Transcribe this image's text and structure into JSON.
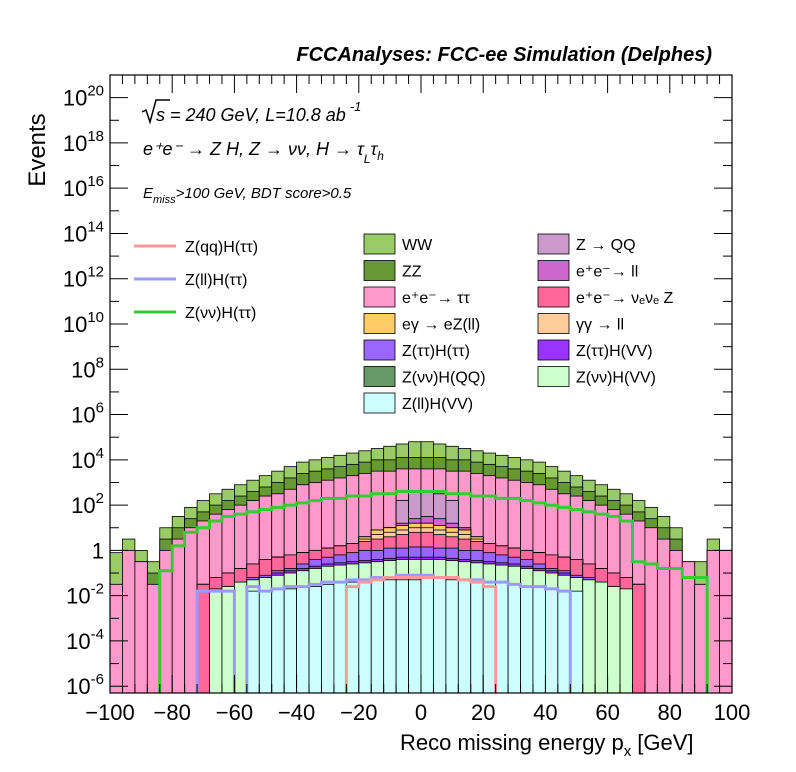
{
  "chart_data": {
    "type": "histogram-stacked",
    "title": "FCCAnalyses: FCC-ee Simulation (Delphes)",
    "xlabel": "Reco missing energy p",
    "xlabel_sub": "x",
    "xlabel_unit": "[GeV]",
    "ylabel": "Events",
    "xlim": [
      -100,
      100
    ],
    "ylim_log10": [
      -6.3,
      21
    ],
    "yscale": "log",
    "x_ticks": [
      "−100",
      "−80",
      "−60",
      "−40",
      "−20",
      "0",
      "20",
      "40",
      "60",
      "80",
      "100"
    ],
    "y_ticks": [
      {
        "base": "10",
        "exp": "-6",
        "v": -6
      },
      {
        "base": "10",
        "exp": "-4",
        "v": -4
      },
      {
        "base": "10",
        "exp": "-2",
        "v": -2
      },
      {
        "base": "1",
        "exp": "",
        "v": 0
      },
      {
        "base": "10",
        "exp": "2",
        "v": 2
      },
      {
        "base": "10",
        "exp": "4",
        "v": 4
      },
      {
        "base": "10",
        "exp": "6",
        "v": 6
      },
      {
        "base": "10",
        "exp": "8",
        "v": 8
      },
      {
        "base": "10",
        "exp": "10",
        "v": 10
      },
      {
        "base": "10",
        "exp": "12",
        "v": 12
      },
      {
        "base": "10",
        "exp": "14",
        "v": 14
      },
      {
        "base": "10",
        "exp": "16",
        "v": 16
      },
      {
        "base": "10",
        "exp": "18",
        "v": 18
      },
      {
        "base": "10",
        "exp": "20",
        "v": 20
      }
    ],
    "annotations": {
      "energy": "s = 240 GeV, L=10.8 ab",
      "energy_exp": "-1",
      "process": "e⁺e⁻ → Z H, Z → νν, H → τ",
      "process_sub1": "L",
      "process_tau2": "τ",
      "process_sub2": "h",
      "cut_prefix": "E",
      "cut_sub": "miss",
      "cut_text": ">100 GeV, BDT score>0.5"
    },
    "legend_lines": [
      {
        "name": "Z(qq)H(ττ)",
        "color": "#ff9999"
      },
      {
        "name": "Z(ll)H(ττ)",
        "color": "#9999ff"
      },
      {
        "name": "Z(νν)H(ττ)",
        "color": "#33cc33"
      }
    ],
    "legend_fills": [
      {
        "name": "WW",
        "color": "#99cc66"
      },
      {
        "name": "Z → QQ",
        "color": "#cc99cc"
      },
      {
        "name": "ZZ",
        "color": "#669933"
      },
      {
        "name": "e⁺e⁻→ ll",
        "color": "#cc66cc"
      },
      {
        "name": "e⁺e⁻→ ττ",
        "color": "#ff99cc"
      },
      {
        "name": "e⁺e⁻→ νₑνₑ Z",
        "color": "#ff6699"
      },
      {
        "name": "eγ → eZ(ll)",
        "color": "#ffcc66"
      },
      {
        "name": "γγ → ll",
        "color": "#ffcc99"
      },
      {
        "name": "Z(ττ)H(ττ)",
        "color": "#9966ff"
      },
      {
        "name": "Z(ττ)H(VV)",
        "color": "#9933ff"
      },
      {
        "name": "Z(νν)H(QQ)",
        "color": "#669966"
      },
      {
        "name": "Z(νν)H(VV)",
        "color": "#ccffcc"
      },
      {
        "name": "Z(ll)H(VV)",
        "color": "#ccffff"
      }
    ],
    "bin_edges_start": -100,
    "bin_width": 4,
    "stack_order": [
      "Z(ll)H(VV)",
      "Z(νν)H(VV)",
      "Z(ττ)H(VV)",
      "Z(ττ)H(ττ)",
      "e⁺e⁻→ νₑνₑ Z",
      "γγ → ll",
      "eγ → eZ(ll)",
      "Z(νν)H(QQ)",
      "e⁺e⁻→ ll",
      "Z → QQ",
      "e⁺e⁻→ ττ",
      "ZZ",
      "WW"
    ],
    "stack_totals_log10": [
      {
        "name": "Z(ll)H(VV)",
        "values": [
          null,
          null,
          null,
          null,
          null,
          null,
          null,
          null,
          null,
          null,
          null,
          -1.8,
          -1.8,
          -1.7,
          -1.7,
          -1.6,
          -1.6,
          -1.5,
          -1.4,
          -1.4,
          -1.4,
          -1.3,
          -1.3,
          -1.3,
          -1.3,
          -1.2,
          -1.2,
          -1.3,
          -1.3,
          -1.3,
          -1.4,
          -1.4,
          -1.5,
          -1.6,
          -1.6,
          -1.7,
          -1.8,
          -1.8,
          null,
          null,
          null,
          null,
          null,
          null,
          null,
          null,
          null,
          null,
          null,
          null
        ]
      },
      {
        "name": "Z(νν)H(VV)",
        "values": [
          null,
          null,
          null,
          null,
          null,
          null,
          null,
          null,
          -1.7,
          -1.6,
          -1.4,
          -1.3,
          -1.2,
          -1.1,
          -1.0,
          -0.9,
          -0.8,
          -0.7,
          -0.65,
          -0.6,
          -0.55,
          -0.5,
          -0.45,
          -0.4,
          -0.4,
          -0.4,
          -0.4,
          -0.45,
          -0.5,
          -0.55,
          -0.6,
          -0.65,
          -0.7,
          -0.8,
          -0.9,
          -1.0,
          -1.1,
          -1.2,
          -1.3,
          -1.4,
          -1.6,
          -1.7,
          null,
          null,
          null,
          null,
          null,
          null,
          null,
          null
        ]
      },
      {
        "name": "Z(ττ)H(VV)",
        "values": [
          null,
          null,
          null,
          null,
          null,
          null,
          null,
          null,
          null,
          null,
          null,
          -1.3,
          -1.2,
          -1.0,
          -0.9,
          -0.8,
          -0.7,
          -0.6,
          -0.55,
          -0.5,
          -0.45,
          -0.4,
          -0.35,
          -0.3,
          -0.3,
          -0.3,
          -0.3,
          -0.35,
          -0.4,
          -0.45,
          -0.5,
          -0.55,
          -0.6,
          -0.7,
          -0.8,
          -0.9,
          -1.0,
          -1.2,
          -1.3,
          null,
          null,
          null,
          null,
          null,
          null,
          null,
          null,
          null,
          null,
          null
        ]
      },
      {
        "name": "Z(ττ)H(ττ)",
        "values": [
          null,
          null,
          null,
          null,
          null,
          null,
          null,
          null,
          null,
          null,
          null,
          -1.2,
          -1.1,
          -0.9,
          -0.8,
          -0.6,
          -0.4,
          -0.3,
          -0.2,
          -0.1,
          0.0,
          0.0,
          0.1,
          0.1,
          0.15,
          0.15,
          0.1,
          0.1,
          0.0,
          0.0,
          -0.1,
          -0.2,
          -0.3,
          -0.4,
          -0.6,
          -0.8,
          -0.9,
          -1.1,
          -1.2,
          null,
          null,
          null,
          null,
          null,
          null,
          null,
          null,
          null,
          null,
          null
        ]
      },
      {
        "name": "e⁺e⁻→ νₑνₑ Z",
        "values": [
          null,
          null,
          null,
          null,
          null,
          null,
          null,
          -1.5,
          -1.2,
          -1.0,
          -0.8,
          -0.6,
          -0.4,
          -0.3,
          -0.2,
          -0.1,
          0.0,
          0.1,
          0.2,
          0.3,
          0.4,
          0.5,
          0.6,
          0.7,
          0.8,
          0.8,
          0.7,
          0.6,
          0.5,
          0.4,
          0.3,
          0.2,
          0.1,
          0.0,
          -0.1,
          -0.2,
          -0.3,
          -0.4,
          -0.6,
          -0.8,
          -1.0,
          -1.2,
          -1.5,
          null,
          null,
          null,
          null,
          null,
          null,
          null
        ]
      },
      {
        "name": "γγ → ll",
        "values": [
          null,
          null,
          null,
          null,
          null,
          null,
          null,
          -1.5,
          -1.2,
          -1.0,
          -0.8,
          -0.6,
          -0.4,
          -0.3,
          -0.2,
          -0.1,
          0.0,
          0.1,
          0.2,
          0.3,
          0.5,
          0.7,
          0.8,
          0.9,
          1.0,
          1.0,
          0.9,
          0.8,
          0.7,
          0.5,
          0.3,
          0.2,
          0.1,
          0.0,
          -0.1,
          -0.2,
          -0.3,
          -0.4,
          -0.6,
          -0.8,
          -1.0,
          -1.2,
          -1.5,
          null,
          null,
          null,
          null,
          null,
          null,
          null
        ]
      },
      {
        "name": "eγ → eZ(ll)",
        "values": [
          null,
          null,
          null,
          null,
          null,
          null,
          null,
          -1.5,
          -1.2,
          -1.0,
          -0.8,
          -0.6,
          -0.4,
          -0.3,
          -0.2,
          -0.1,
          0.0,
          0.1,
          0.2,
          0.3,
          0.6,
          0.9,
          1.0,
          1.1,
          1.2,
          1.2,
          1.1,
          1.0,
          0.9,
          0.6,
          0.3,
          0.2,
          0.1,
          0.0,
          -0.1,
          -0.2,
          -0.3,
          -0.4,
          -0.6,
          -0.8,
          -1.0,
          -1.2,
          -1.5,
          null,
          null,
          null,
          null,
          null,
          null,
          null
        ]
      },
      {
        "name": "Z(νν)H(QQ)",
        "values": [
          null,
          null,
          null,
          null,
          null,
          null,
          null,
          -1.5,
          -1.2,
          -1.0,
          -0.8,
          -0.6,
          -0.4,
          -0.3,
          -0.2,
          -0.1,
          0.0,
          0.1,
          0.2,
          0.3,
          0.6,
          0.9,
          1.0,
          1.1,
          1.2,
          1.2,
          1.1,
          1.0,
          0.9,
          0.6,
          0.3,
          0.2,
          0.1,
          0.0,
          -0.1,
          -0.2,
          -0.3,
          -0.4,
          -0.6,
          -0.8,
          -1.0,
          -1.2,
          -1.5,
          null,
          null,
          null,
          null,
          null,
          null,
          null
        ]
      },
      {
        "name": "e⁺e⁻→ ll",
        "values": [
          null,
          null,
          null,
          null,
          null,
          null,
          null,
          -1.5,
          -1.2,
          -1.0,
          -0.8,
          -0.6,
          -0.4,
          -0.3,
          -0.2,
          -0.1,
          0.0,
          0.1,
          0.2,
          0.3,
          0.6,
          0.9,
          1.0,
          1.2,
          1.4,
          1.5,
          1.4,
          1.2,
          1.0,
          0.6,
          0.3,
          0.2,
          0.1,
          0.0,
          -0.1,
          -0.2,
          -0.3,
          -0.4,
          -0.6,
          -0.8,
          -1.0,
          -1.2,
          -1.5,
          null,
          null,
          null,
          null,
          null,
          null,
          null
        ]
      },
      {
        "name": "Z → QQ",
        "values": [
          null,
          null,
          null,
          null,
          null,
          null,
          null,
          -1.5,
          -1.2,
          -1.0,
          -0.8,
          -0.6,
          -0.4,
          -0.3,
          -0.2,
          -0.1,
          0.0,
          0.1,
          0.2,
          0.3,
          0.6,
          0.9,
          1.0,
          2.2,
          2.6,
          2.6,
          2.5,
          2.2,
          1.0,
          0.6,
          0.3,
          0.2,
          0.1,
          0.0,
          -0.1,
          -0.2,
          -0.3,
          -0.4,
          -0.6,
          -0.8,
          -1.0,
          -1.2,
          -1.5,
          null,
          null,
          null,
          null,
          null,
          null,
          null
        ]
      },
      {
        "name": "e⁺e⁻→ ττ",
        "values": [
          -1.5,
          0.0,
          -0.5,
          -1.5,
          0.0,
          0.5,
          1.0,
          1.3,
          1.6,
          1.8,
          2.0,
          2.2,
          2.4,
          2.5,
          2.7,
          2.9,
          3.0,
          3.1,
          3.2,
          3.3,
          3.4,
          3.5,
          3.5,
          3.6,
          3.6,
          3.6,
          3.6,
          3.5,
          3.5,
          3.4,
          3.3,
          3.2,
          3.1,
          3.0,
          2.9,
          2.7,
          2.5,
          2.4,
          2.2,
          2.0,
          1.8,
          1.6,
          1.3,
          1.0,
          0.5,
          0.0,
          -0.5,
          -1.5,
          0.0,
          0.0
        ]
      },
      {
        "name": "ZZ",
        "values": [
          -1.5,
          0.0,
          -0.5,
          -1.0,
          0.5,
          1.0,
          1.4,
          1.7,
          2.0,
          2.2,
          2.4,
          2.6,
          2.8,
          3.0,
          3.2,
          3.4,
          3.5,
          3.6,
          3.7,
          3.8,
          3.9,
          4.0,
          4.0,
          4.1,
          4.1,
          4.1,
          4.1,
          4.0,
          4.0,
          3.9,
          3.8,
          3.7,
          3.6,
          3.5,
          3.4,
          3.2,
          3.0,
          2.8,
          2.6,
          2.4,
          2.2,
          2.0,
          1.7,
          1.4,
          1.0,
          0.5,
          -1.0,
          -1.5,
          0.0,
          0.0
        ]
      },
      {
        "name": "WW",
        "values": [
          -0.1,
          0.5,
          0.0,
          -0.5,
          1.0,
          1.5,
          1.9,
          2.2,
          2.5,
          2.7,
          2.9,
          3.1,
          3.3,
          3.5,
          3.7,
          3.9,
          4.0,
          4.1,
          4.2,
          4.3,
          4.4,
          4.5,
          4.6,
          4.7,
          4.8,
          4.8,
          4.7,
          4.6,
          4.5,
          4.4,
          4.3,
          4.2,
          4.1,
          4.0,
          3.9,
          3.7,
          3.5,
          3.3,
          3.1,
          2.9,
          2.7,
          2.5,
          2.2,
          1.9,
          1.5,
          1.0,
          -0.5,
          -0.5,
          0.5,
          0.0
        ]
      }
    ],
    "line_series_log10": [
      {
        "name": "Z(νν)H(ττ)",
        "values": [
          null,
          null,
          null,
          null,
          -0.9,
          0.2,
          0.8,
          1.0,
          1.3,
          1.5,
          1.6,
          1.7,
          1.8,
          1.9,
          2.0,
          2.1,
          2.2,
          2.3,
          2.3,
          2.4,
          2.4,
          2.5,
          2.5,
          2.6,
          2.6,
          2.6,
          2.6,
          2.5,
          2.5,
          2.4,
          2.4,
          2.3,
          2.3,
          2.2,
          2.1,
          2.0,
          1.9,
          1.8,
          1.7,
          1.6,
          1.5,
          1.3,
          -0.5,
          -0.6,
          -0.8,
          -0.8,
          -1.2,
          -1.2,
          null,
          null
        ]
      },
      {
        "name": "Z(ll)H(ττ)",
        "values": [
          null,
          null,
          null,
          null,
          null,
          null,
          null,
          -1.8,
          -1.8,
          -1.8,
          null,
          -1.6,
          -1.8,
          -1.7,
          -1.6,
          -1.6,
          -1.5,
          -1.4,
          -1.4,
          -1.3,
          -1.3,
          -1.2,
          -1.2,
          -1.1,
          -1.1,
          -1.1,
          -1.2,
          -1.2,
          -1.3,
          -1.3,
          -1.4,
          -1.4,
          -1.5,
          -1.6,
          -1.6,
          -1.7,
          -1.8,
          null,
          null,
          null,
          null,
          null,
          null,
          null,
          null,
          null,
          null,
          null,
          null,
          null
        ]
      },
      {
        "name": "Z(qq)H(ττ)",
        "values": [
          null,
          null,
          null,
          null,
          null,
          null,
          null,
          null,
          null,
          null,
          null,
          null,
          null,
          null,
          null,
          null,
          null,
          null,
          null,
          -1.6,
          -1.4,
          -1.3,
          -1.2,
          -1.2,
          -1.2,
          -1.2,
          -1.2,
          -1.2,
          -1.3,
          -1.4,
          -1.6,
          null,
          null,
          null,
          null,
          null,
          null,
          null,
          null,
          null,
          null,
          null,
          null,
          null,
          null,
          null,
          null,
          null,
          null,
          null
        ]
      }
    ]
  }
}
